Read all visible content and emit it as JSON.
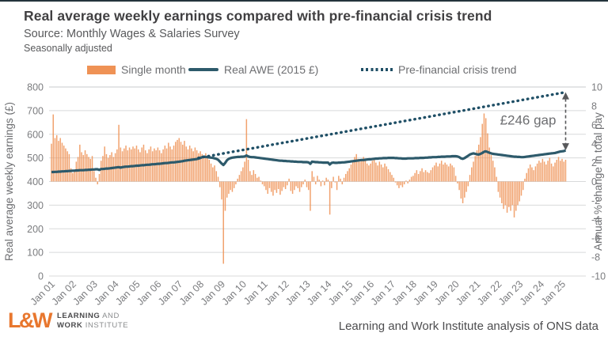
{
  "header": {
    "title": "Real average weekly earnings compared with pre-financial crisis trend",
    "source": "Source: Monthly Wages & Salaries Survey",
    "adjusted": "Seasonally adjusted"
  },
  "footer": {
    "attribution": "Learning and Work Institute analysis of ONS data",
    "logo": {
      "mark": "L&W",
      "line1_bold": "LEARNING",
      "line1_light": " AND",
      "line2_bold": "WORK",
      "line2_light": " INSTITUTE"
    }
  },
  "chart_data": {
    "type": "combo-bar-line",
    "frequency": "monthly",
    "x_start": "Jan 2001",
    "x_end": "Mar 2025",
    "x_tick_labels": [
      "Jan 01",
      "Jan 02",
      "Jan 03",
      "Jan 04",
      "Jan 05",
      "Jan 06",
      "Jan 07",
      "Jan 08",
      "Jan 09",
      "Jan 10",
      "Jan 11",
      "Jan 12",
      "Jan 13",
      "Jan 14",
      "Jan 15",
      "Jan 16",
      "Jan 17",
      "Jan 18",
      "Jan 19",
      "Jan 20",
      "Jan 21",
      "Jan 22",
      "Jan 23",
      "Jan 24",
      "Jan 25"
    ],
    "legend": [
      {
        "label": "Single month",
        "type": "bar"
      },
      {
        "label": "Real AWE (2015 £)",
        "type": "line"
      },
      {
        "label": "Pre-financial crisis trend",
        "type": "dotted-line"
      }
    ],
    "left_axis": {
      "title": "Real average weekly earnings (£)",
      "min": 0,
      "max": 800,
      "step": 100
    },
    "right_axis": {
      "title": "Annual % change in total pay",
      "min": -10,
      "max": 10,
      "step": 2
    },
    "grid": true,
    "annotation": {
      "text": "£246 gap"
    },
    "series": [
      {
        "name": "Single month",
        "type": "bar",
        "axis": "right",
        "unit": "%",
        "values": [
          4.0,
          7.1,
          4.6,
          4.9,
          4.3,
          4.6,
          4.1,
          3.8,
          3.5,
          3.2,
          2.9,
          1.4,
          0.9,
          1.2,
          2.1,
          2.6,
          3.9,
          3.1,
          2.8,
          3.3,
          2.9,
          2.6,
          2.4,
          2.7,
          1.1,
          0.4,
          -0.3,
          0.8,
          2.2,
          2.7,
          3.7,
          2.9,
          2.5,
          2.8,
          3.1,
          2.6,
          3.0,
          3.4,
          6.0,
          3.6,
          3.2,
          3.5,
          3.8,
          3.3,
          3.6,
          3.4,
          3.7,
          3.5,
          3.8,
          3.4,
          3.1,
          3.6,
          3.9,
          3.3,
          3.0,
          3.4,
          3.7,
          3.2,
          3.5,
          3.3,
          3.6,
          3.3,
          3.0,
          3.4,
          3.8,
          3.5,
          4.1,
          3.7,
          3.4,
          3.8,
          4.2,
          4.4,
          4.6,
          4.2,
          3.9,
          4.3,
          3.7,
          3.4,
          3.8,
          3.5,
          3.2,
          3.6,
          3.3,
          3.0,
          3.2,
          2.9,
          2.6,
          3.0,
          2.7,
          2.3,
          1.9,
          1.5,
          1.7,
          1.1,
          0.5,
          -0.6,
          -1.9,
          -8.7,
          -3.1,
          -1.7,
          -1.3,
          -0.9,
          -1.1,
          -0.7,
          -0.3,
          0.3,
          0.7,
          1.1,
          1.5,
          2.1,
          6.6,
          2.3,
          1.1,
          0.7,
          1.2,
          0.8,
          0.4,
          0.5,
          0.1,
          -0.3,
          -0.5,
          -0.9,
          -1.3,
          -0.7,
          -1.1,
          -1.5,
          -0.9,
          -1.2,
          -0.8,
          -1.4,
          -1.0,
          -0.6,
          -0.8,
          -0.4,
          0.3,
          -1.0,
          -1.3,
          -0.9,
          -0.5,
          -0.7,
          -1.1,
          -0.6,
          -0.3,
          0.2,
          -0.6,
          -0.9,
          -3.1,
          1.1,
          0.5,
          -0.3,
          0.6,
          0.2,
          -0.5,
          0.1,
          -0.4,
          0.4,
          0.2,
          -3.5,
          -0.7,
          0.5,
          -0.1,
          -0.9,
          0.6,
          0.3,
          -0.3,
          0.4,
          0.8,
          1.1,
          1.4,
          1.8,
          2.2,
          2.6,
          2.9,
          2.4,
          2.1,
          2.3,
          2.6,
          2.2,
          1.9,
          1.7,
          1.9,
          2.2,
          2.5,
          2.0,
          1.7,
          2.1,
          1.8,
          1.5,
          1.9,
          1.6,
          1.3,
          1.0,
          0.7,
          0.4,
          -0.1,
          -0.4,
          -0.7,
          -0.4,
          -0.6,
          -0.3,
          0.1,
          -0.2,
          0.2,
          0.5,
          0.6,
          0.9,
          1.2,
          0.8,
          1.1,
          1.4,
          1.0,
          1.2,
          1.0,
          0.9,
          1.2,
          1.5,
          1.7,
          2.0,
          1.6,
          1.9,
          2.2,
          1.8,
          2.0,
          1.8,
          1.6,
          1.9,
          1.7,
          1.5,
          0.6,
          -0.2,
          -0.9,
          -1.8,
          -2.3,
          -1.7,
          -1.1,
          -0.5,
          0.7,
          1.5,
          2.1,
          2.7,
          3.3,
          3.9,
          4.7,
          6.1,
          7.2,
          6.7,
          5.1,
          3.6,
          2.8,
          2.2,
          1.5,
          0.5,
          -1.1,
          -1.7,
          -2.3,
          -2.9,
          -2.5,
          -3.3,
          -2.7,
          -3.1,
          -2.5,
          -3.8,
          -3.1,
          -2.5,
          -2.1,
          -1.5,
          -0.9,
          0.3,
          0.9,
          1.4,
          1.8,
          1.5,
          1.2,
          1.6,
          1.9,
          2.2,
          2.0,
          2.4,
          2.1,
          1.8,
          2.2,
          2.5,
          1.9,
          1.6,
          2.0,
          2.3,
          2.6,
          2.2,
          2.4,
          2.1,
          2.3
        ]
      },
      {
        "name": "Real AWE (2015 £)",
        "type": "line",
        "axis": "left",
        "unit": "£",
        "values": [
          440,
          440,
          441,
          441,
          442,
          442,
          443,
          443,
          444,
          444,
          445,
          445,
          446,
          446,
          447,
          447,
          448,
          448,
          448,
          449,
          449,
          450,
          450,
          451,
          451,
          452,
          452,
          449,
          453,
          453,
          454,
          455,
          455,
          456,
          457,
          458,
          459,
          460,
          461,
          459,
          461,
          462,
          463,
          463,
          464,
          465,
          465,
          466,
          467,
          467,
          468,
          469,
          469,
          470,
          471,
          471,
          472,
          473,
          473,
          474,
          475,
          475,
          476,
          477,
          478,
          478,
          479,
          480,
          481,
          481,
          482,
          483,
          484,
          485,
          486,
          488,
          489,
          490,
          491,
          492,
          493,
          494,
          495,
          497,
          500,
          503,
          505,
          504,
          503,
          502,
          501,
          500,
          498,
          496,
          492,
          484,
          476,
          470,
          479,
          490,
          496,
          499,
          501,
          502,
          503,
          504,
          504,
          505,
          505,
          506,
          510,
          506,
          504,
          503,
          503,
          502,
          501,
          500,
          499,
          498,
          497,
          496,
          495,
          494,
          493,
          492,
          491,
          490,
          489,
          488,
          488,
          487,
          487,
          486,
          486,
          485,
          485,
          484,
          484,
          483,
          483,
          483,
          482,
          482,
          482,
          481,
          475,
          484,
          483,
          482,
          482,
          481,
          481,
          480,
          480,
          480,
          480,
          472,
          479,
          480,
          479,
          479,
          480,
          480,
          481,
          481,
          482,
          483,
          484,
          485,
          486,
          487,
          488,
          489,
          490,
          491,
          491,
          492,
          493,
          494,
          494,
          495,
          496,
          497,
          497,
          498,
          498,
          499,
          499,
          499,
          500,
          500,
          500,
          500,
          499,
          499,
          498,
          498,
          497,
          497,
          497,
          498,
          498,
          498,
          498,
          499,
          499,
          499,
          500,
          500,
          500,
          501,
          501,
          502,
          502,
          503,
          503,
          503,
          504,
          504,
          505,
          505,
          505,
          506,
          506,
          506,
          507,
          507,
          507,
          506,
          503,
          498,
          496,
          499,
          504,
          509,
          514,
          517,
          519,
          517,
          515,
          514,
          517,
          521,
          526,
          528,
          525,
          522,
          519,
          517,
          516,
          515,
          514,
          513,
          512,
          511,
          510,
          509,
          508,
          507,
          506,
          505,
          505,
          504,
          504,
          503,
          503,
          504,
          505,
          506,
          507,
          508,
          509,
          510,
          511,
          512,
          513,
          514,
          515,
          516,
          517,
          518,
          519,
          520,
          521,
          523,
          525,
          527,
          528,
          529,
          532
        ]
      },
      {
        "name": "Pre-financial crisis trend",
        "type": "dotted-line",
        "axis": "left",
        "unit": "£",
        "line": {
          "start_index": 83,
          "start_value": 500,
          "end_index": 290,
          "end_value": 778
        }
      }
    ],
    "colors": {
      "bar": "#EF9255",
      "awe_line": "#2D5A6B",
      "trend": "#1F4F66",
      "annotation": "#58595B",
      "gridline": "#D8D9DA",
      "axis_text": "#7B7C7F",
      "logo_orange": "#E8772E"
    }
  }
}
